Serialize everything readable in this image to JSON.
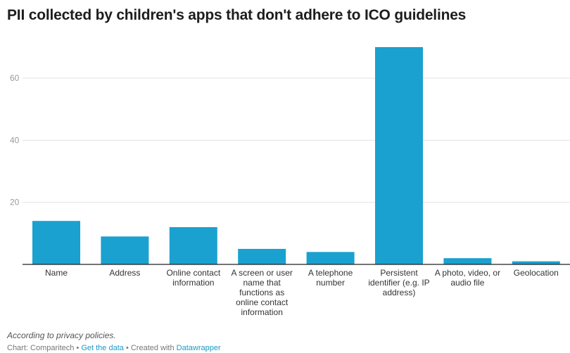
{
  "chart_data": {
    "type": "bar",
    "title": "PII collected by children's apps that don't adhere to ICO guidelines",
    "categories": [
      "Name",
      "Address",
      "Online contact information",
      "A screen or user name that functions as online contact information",
      "A telephone number",
      "Persistent identifier (e.g. IP address)",
      "A photo, video, or audio file",
      "Geolocation"
    ],
    "values": [
      14,
      9,
      12,
      5,
      4,
      70,
      2,
      1
    ],
    "yticks": [
      20,
      40,
      60
    ],
    "ylim": [
      0,
      70
    ],
    "grid": true,
    "bar_color": "#1aa1cf"
  },
  "notes": "According to privacy policies.",
  "footer": {
    "source": "Chart: Comparitech",
    "sep1": " • ",
    "get_data": "Get the data",
    "sep2": " • Created with ",
    "datawrapper": "Datawrapper"
  }
}
